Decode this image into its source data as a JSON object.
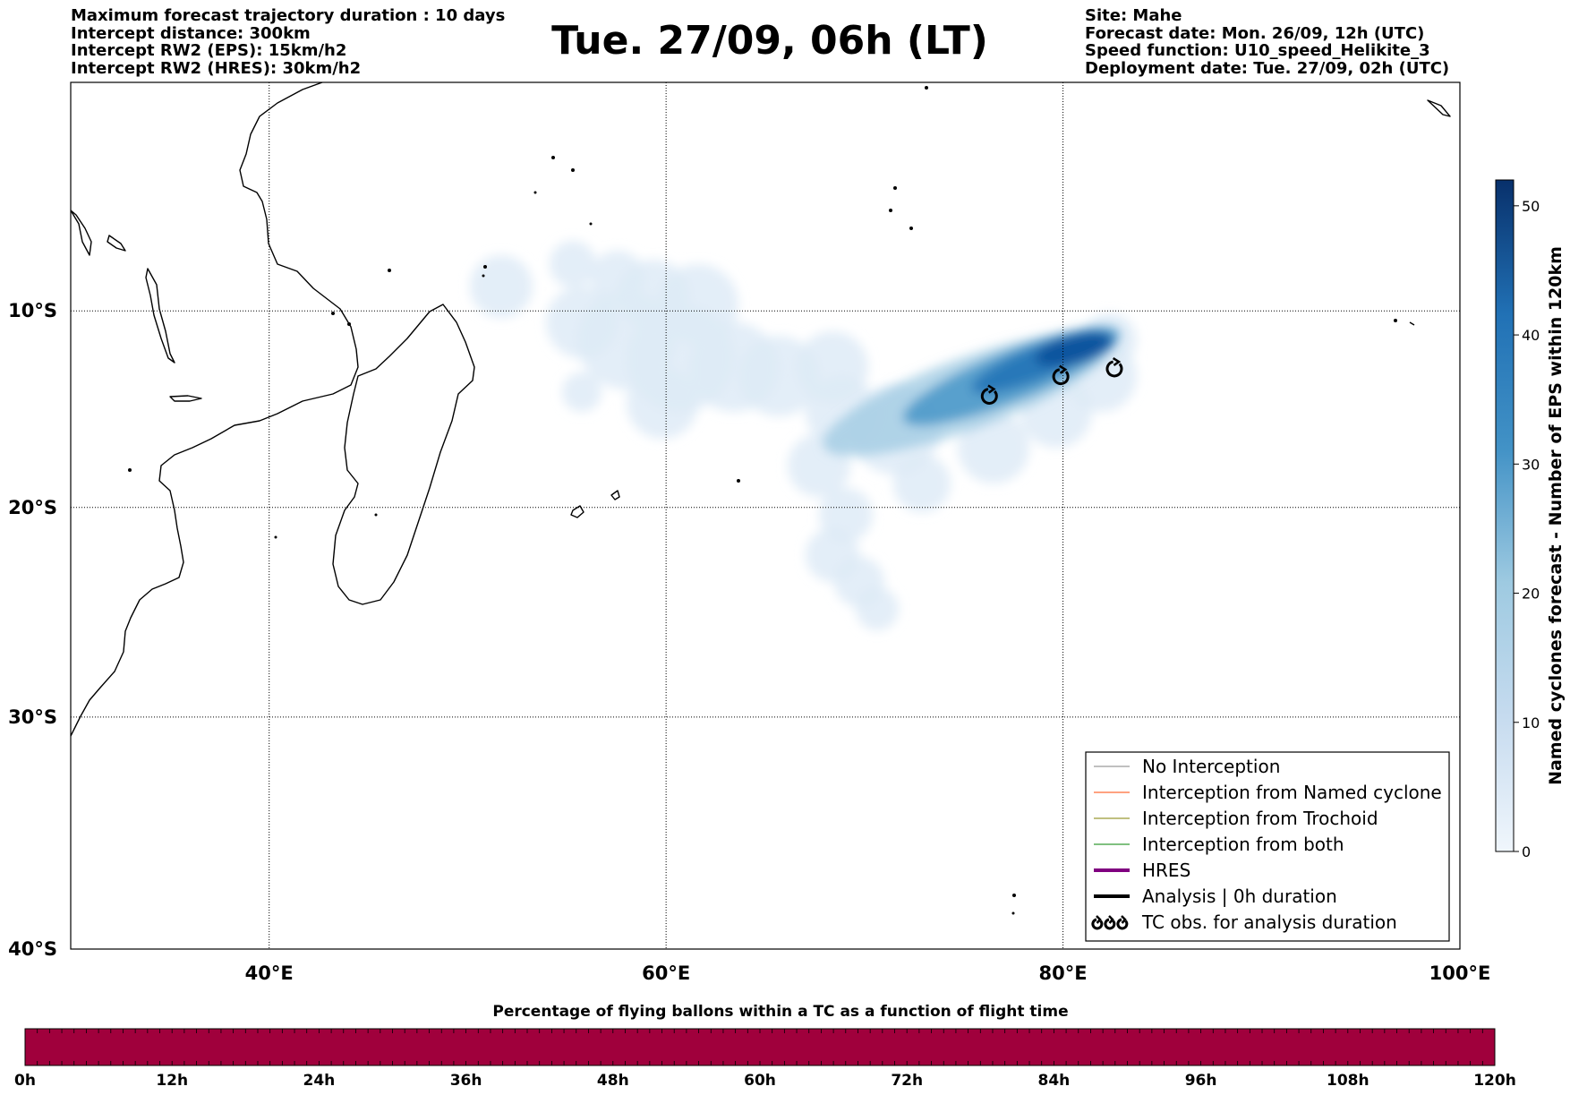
{
  "header_left": [
    "Maximum forecast trajectory duration : 10 days",
    "Intercept distance: 300km",
    "Intercept RW2 (EPS):  15km/h2",
    "Intercept RW2 (HRES): 30km/h2"
  ],
  "title": "Tue. 27/09, 06h (LT)",
  "header_right": [
    "Site: Mahe",
    "Forecast date: Mon. 26/09, 12h (UTC)",
    "Speed function: U10_speed_Helikite_3",
    "Deployment date: Tue. 27/09, 02h (UTC)"
  ],
  "map": {
    "lon_range": [
      30,
      100
    ],
    "lat_range": [
      -40,
      2
    ],
    "lat_labels": [
      {
        "value": -10,
        "text": "10°S"
      },
      {
        "value": -20,
        "text": "20°S"
      },
      {
        "value": -30,
        "text": "30°S"
      },
      {
        "value": -40,
        "text": "40°S"
      }
    ],
    "lon_labels": [
      {
        "value": 40,
        "text": "40°E"
      },
      {
        "value": 60,
        "text": "60°E"
      },
      {
        "value": 80,
        "text": "80°E"
      },
      {
        "value": 100,
        "text": "100°E"
      }
    ],
    "tc_obs": [
      {
        "lon": 76.3,
        "lat": -14.4
      },
      {
        "lon": 79.9,
        "lat": -13.4
      },
      {
        "lon": 82.6,
        "lat": -13.0
      }
    ],
    "colors": {
      "coast": "#000000",
      "grid": "#000000",
      "density_low": "#deebf7",
      "density_high": "#08306b"
    }
  },
  "legend": [
    {
      "label": "No Interception",
      "color": "#808080",
      "width": 1,
      "kind": "line"
    },
    {
      "label": "Interception from Named cyclone",
      "color": "#ff4500",
      "width": 1,
      "kind": "line"
    },
    {
      "label": "Interception from Trochoid",
      "color": "#808000",
      "width": 1,
      "kind": "line"
    },
    {
      "label": "Interception from both",
      "color": "#008000",
      "width": 1,
      "kind": "line"
    },
    {
      "label": "HRES",
      "color": "#800080",
      "width": 4,
      "kind": "line"
    },
    {
      "label": "Analysis | 0h duration",
      "color": "#000000",
      "width": 4,
      "kind": "line"
    },
    {
      "label": "TC obs. for analysis duration",
      "color": "#000000",
      "width": 1,
      "kind": "tc"
    }
  ],
  "colorbar": {
    "label": "Named cyclones forecast - Number of EPS within 120km",
    "min": 0,
    "max": 52,
    "ticks": [
      0,
      10,
      20,
      30,
      40,
      50
    ]
  },
  "bottom_bar": {
    "title": "Percentage of flying ballons within a TC as a function of flight time",
    "color": "#a0003c",
    "ticks": [
      "0h",
      "12h",
      "24h",
      "36h",
      "48h",
      "60h",
      "72h",
      "84h",
      "96h",
      "108h",
      "120h"
    ]
  }
}
